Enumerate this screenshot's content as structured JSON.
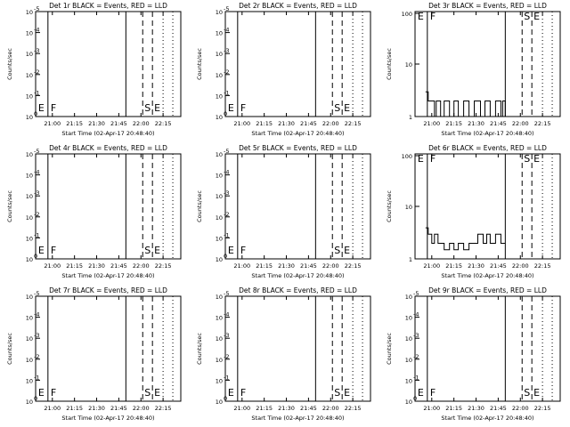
{
  "chart_data": [
    {
      "type": "line",
      "title": "Det 1r BLACK = Events, RED = LLD",
      "ylabel": "Counts/sec",
      "xlabel": "Start Time (02-Apr-17 20:48:40)",
      "x_ticks": [
        "21:00",
        "21:15",
        "21:30",
        "21:45",
        "22:00",
        "22:15"
      ],
      "y_ticks": [
        "10^0",
        "10^-1",
        "10^-2",
        "10^-3",
        "10^-4",
        "10^-5"
      ],
      "y_ticks_display": [
        "10",
        "10",
        "10",
        "10",
        "10",
        "10"
      ],
      "y_ticks_exp": [
        "0",
        "-1",
        "-2",
        "-3",
        "-4",
        "-5"
      ],
      "y_log_range": [
        -5,
        0
      ],
      "markers": [
        "E",
        "F",
        "S",
        "E"
      ],
      "series": []
    },
    {
      "type": "line",
      "title": "Det 2r BLACK = Events, RED = LLD",
      "ylabel": "Counts/sec",
      "xlabel": "Start Time (02-Apr-17 20:48:40)",
      "x_ticks": [
        "21:00",
        "21:15",
        "21:30",
        "21:45",
        "22:00",
        "22:15"
      ],
      "y_ticks_display": [
        "10",
        "10",
        "10",
        "10",
        "10",
        "10"
      ],
      "y_ticks_exp": [
        "0",
        "-1",
        "-2",
        "-3",
        "-4",
        "-5"
      ],
      "markers": [
        "E",
        "F",
        "S",
        "E"
      ],
      "series": []
    },
    {
      "type": "line",
      "title": "Det 3r BLACK = Events, RED = LLD",
      "ylabel": "Counts/sec",
      "xlabel": "Start Time (02-Apr-17 20:48:40)",
      "x_ticks": [
        "21:00",
        "21:15",
        "21:30",
        "21:45",
        "22:00",
        "22:15"
      ],
      "y_ticks_display": [
        "100",
        "10",
        "1"
      ],
      "y_range": [
        1,
        100
      ],
      "markers": [
        "E",
        "F",
        "S",
        "E"
      ],
      "series": [
        {
          "values": [
            [
              20.93,
              3
            ],
            [
              20.96,
              2
            ],
            [
              21.0,
              2
            ],
            [
              21.03,
              1
            ],
            [
              21.05,
              2
            ],
            [
              21.1,
              1
            ],
            [
              21.14,
              2
            ],
            [
              21.2,
              1
            ],
            [
              21.25,
              2
            ],
            [
              21.3,
              1
            ],
            [
              21.36,
              2
            ],
            [
              21.42,
              1
            ],
            [
              21.48,
              2
            ],
            [
              21.5,
              2
            ],
            [
              21.55,
              1
            ],
            [
              21.6,
              2
            ],
            [
              21.66,
              1
            ],
            [
              21.72,
              2
            ],
            [
              21.78,
              1
            ],
            [
              21.8,
              2
            ],
            [
              21.83,
              1
            ]
          ]
        }
      ]
    },
    {
      "type": "line",
      "title": "Det 4r BLACK = Events, RED = LLD",
      "ylabel": "Counts/sec",
      "xlabel": "Start Time (02-Apr-17 20:48:40)",
      "x_ticks": [
        "21:00",
        "21:15",
        "21:30",
        "21:45",
        "22:00",
        "22:15"
      ],
      "y_ticks_display": [
        "10",
        "10",
        "10",
        "10",
        "10",
        "10"
      ],
      "y_ticks_exp": [
        "0",
        "-1",
        "-2",
        "-3",
        "-4",
        "-5"
      ],
      "markers": [
        "E",
        "F",
        "S",
        "E"
      ],
      "series": []
    },
    {
      "type": "line",
      "title": "Det 5r BLACK = Events, RED = LLD",
      "ylabel": "Counts/sec",
      "xlabel": "Start Time (02-Apr-17 20:48:40)",
      "x_ticks": [
        "21:00",
        "21:15",
        "21:30",
        "21:45",
        "22:00",
        "22:15"
      ],
      "y_ticks_display": [
        "10",
        "10",
        "10",
        "10",
        "10",
        "10"
      ],
      "y_ticks_exp": [
        "0",
        "-1",
        "-2",
        "-3",
        "-4",
        "-5"
      ],
      "markers": [
        "E",
        "F",
        "S",
        "E"
      ],
      "series": []
    },
    {
      "type": "line",
      "title": "Det 6r BLACK = Events, RED = LLD",
      "ylabel": "Counts/sec",
      "xlabel": "Start Time (02-Apr-17 20:48:40)",
      "x_ticks": [
        "21:00",
        "21:15",
        "21:30",
        "21:45",
        "22:00",
        "22:15"
      ],
      "y_ticks_display": [
        "100",
        "10",
        "1"
      ],
      "y_range": [
        1,
        100
      ],
      "markers": [
        "E",
        "F",
        "S",
        "E"
      ],
      "series": [
        {
          "values": [
            [
              20.93,
              4
            ],
            [
              20.96,
              3
            ],
            [
              21.0,
              2
            ],
            [
              21.03,
              3
            ],
            [
              21.07,
              2
            ],
            [
              21.1,
              2
            ],
            [
              21.14,
              1.5
            ],
            [
              21.2,
              2
            ],
            [
              21.25,
              1.5
            ],
            [
              21.3,
              2
            ],
            [
              21.36,
              1.5
            ],
            [
              21.42,
              2
            ],
            [
              21.48,
              2
            ],
            [
              21.52,
              3
            ],
            [
              21.58,
              2
            ],
            [
              21.62,
              3
            ],
            [
              21.66,
              2
            ],
            [
              21.72,
              3
            ],
            [
              21.78,
              2
            ],
            [
              21.83,
              2
            ]
          ]
        }
      ]
    },
    {
      "type": "line",
      "title": "Det 7r BLACK = Events, RED = LLD",
      "ylabel": "Counts/sec",
      "xlabel": "Start Time (02-Apr-17 20:48:40)",
      "x_ticks": [
        "21:00",
        "21:15",
        "21:30",
        "21:45",
        "22:00",
        "22:15"
      ],
      "y_ticks_display": [
        "10",
        "10",
        "10",
        "10",
        "10",
        "10"
      ],
      "y_ticks_exp": [
        "0",
        "-1",
        "-2",
        "-3",
        "-4",
        "-5"
      ],
      "markers": [
        "E",
        "F",
        "S",
        "E"
      ],
      "series": []
    },
    {
      "type": "line",
      "title": "Det 8r BLACK = Events, RED = LLD",
      "ylabel": "Counts/sec",
      "xlabel": "Start Time (02-Apr-17 20:48:40)",
      "x_ticks": [
        "21:00",
        "21:15",
        "21:30",
        "21:45",
        "22:00",
        "22:15"
      ],
      "y_ticks_display": [
        "10",
        "10",
        "10",
        "10",
        "10",
        "10"
      ],
      "y_ticks_exp": [
        "0",
        "-1",
        "-2",
        "-3",
        "-4",
        "-5"
      ],
      "markers": [
        "E",
        "F",
        "S",
        "E"
      ],
      "series": []
    },
    {
      "type": "line",
      "title": "Det 9r BLACK = Events, RED = LLD",
      "ylabel": "Counts/sec",
      "xlabel": "Start Time (02-Apr-17 20:48:40)",
      "x_ticks": [
        "21:00",
        "21:15",
        "21:30",
        "21:45",
        "22:00",
        "22:15"
      ],
      "y_ticks_display": [
        "10",
        "10",
        "10",
        "10",
        "10",
        "10"
      ],
      "y_ticks_exp": [
        "0",
        "-1",
        "-2",
        "-3",
        "-4",
        "-5"
      ],
      "markers": [
        "E",
        "F",
        "S",
        "E"
      ],
      "series": []
    }
  ],
  "colors": {
    "events": "#000000",
    "lld": "#ff0000",
    "background": "#ffffff"
  }
}
